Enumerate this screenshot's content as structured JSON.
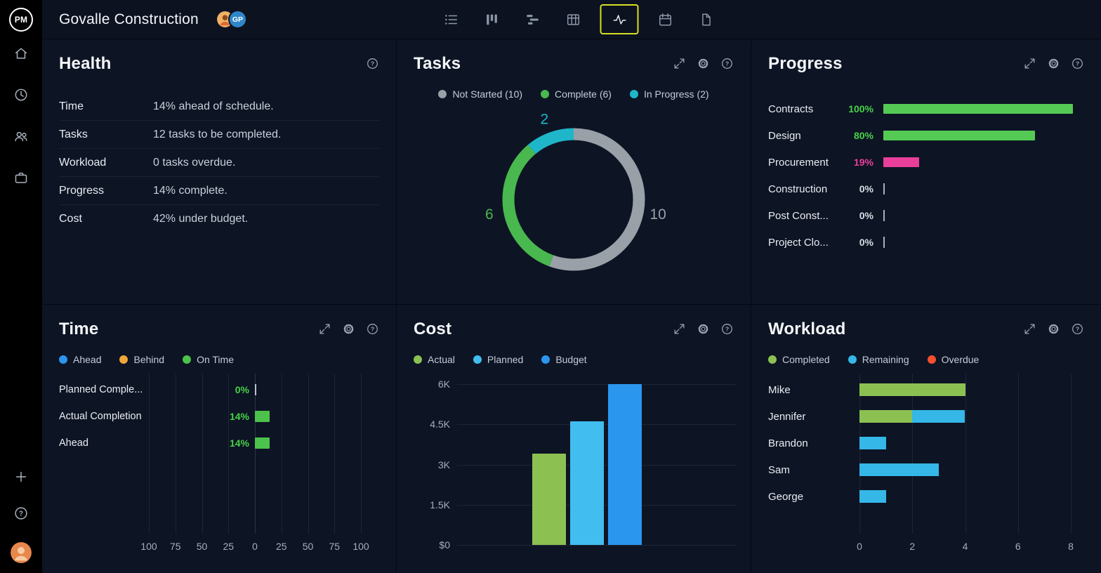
{
  "app": {
    "logo_text": "PM",
    "title": "Govalle Construction"
  },
  "topbar": {
    "avatars": [
      {
        "type": "photo",
        "name": "member-avatar"
      },
      {
        "type": "initials",
        "initials": "GP",
        "color": "#2f86c8"
      }
    ],
    "view_icons": [
      {
        "name": "task-list"
      },
      {
        "name": "kanban-board"
      },
      {
        "name": "gantt"
      },
      {
        "name": "sheet"
      },
      {
        "name": "dashboard",
        "active": true
      },
      {
        "name": "calendar"
      },
      {
        "name": "report"
      }
    ],
    "active_view_border": "#d7e021"
  },
  "sidebar": {
    "icons": [
      "home",
      "timesheet",
      "team",
      "portfolio"
    ],
    "footer_icons": [
      "add",
      "help",
      "profile"
    ]
  },
  "panels": {
    "health": {
      "title": "Health",
      "rows": [
        {
          "label": "Time",
          "value": "14% ahead of schedule."
        },
        {
          "label": "Tasks",
          "value": "12 tasks to be completed."
        },
        {
          "label": "Workload",
          "value": "0 tasks overdue."
        },
        {
          "label": "Progress",
          "value": "14% complete."
        },
        {
          "label": "Cost",
          "value": "42% under budget."
        }
      ]
    },
    "tasks": {
      "title": "Tasks",
      "chart_data": {
        "type": "pie",
        "donut": true,
        "total": 18,
        "legend": [
          {
            "label": "Not Started (10)",
            "color": "#9aa0a8"
          },
          {
            "label": "Complete (6)",
            "color": "#49b84e"
          },
          {
            "label": "In Progress (2)",
            "color": "#1fb6c9"
          }
        ],
        "segments": [
          {
            "name": "Not Started",
            "value": 10,
            "color": "#9aa0a8"
          },
          {
            "name": "Complete",
            "value": 6,
            "color": "#49b84e"
          },
          {
            "name": "In Progress",
            "value": 2,
            "color": "#1fb6c9"
          }
        ]
      }
    },
    "progress": {
      "title": "Progress",
      "chart_data": {
        "type": "bar",
        "orientation": "horizontal",
        "max": 100,
        "rows": [
          {
            "label": "Contracts",
            "value": 100,
            "display": "100%",
            "bar_color": "#54ca54",
            "value_color": "#47d247"
          },
          {
            "label": "Design",
            "value": 80,
            "display": "80%",
            "bar_color": "#54ca54",
            "value_color": "#47d247"
          },
          {
            "label": "Procurement",
            "value": 19,
            "display": "19%",
            "bar_color": "#ea3e9b",
            "value_color": "#ea3e9b"
          },
          {
            "label": "Construction",
            "value": 0,
            "display": "0%",
            "bar_color": "#a7b0bd",
            "value_color": "#d9dde3"
          },
          {
            "label": "Post Const...",
            "value": 0,
            "display": "0%",
            "bar_color": "#a7b0bd",
            "value_color": "#d9dde3"
          },
          {
            "label": "Project Clo...",
            "value": 0,
            "display": "0%",
            "bar_color": "#a7b0bd",
            "value_color": "#d9dde3"
          }
        ]
      }
    },
    "time": {
      "title": "Time",
      "chart_data": {
        "type": "bar",
        "orientation": "diverging-horizontal",
        "legend": [
          {
            "label": "Ahead",
            "color": "#2b96ee"
          },
          {
            "label": "Behind",
            "color": "#f0a63a"
          },
          {
            "label": "On Time",
            "color": "#4cc14c"
          }
        ],
        "axis_ticks": [
          100,
          75,
          50,
          25,
          0,
          25,
          50,
          75,
          100
        ],
        "range": [
          -100,
          100
        ],
        "bar_color": "#4cc14c",
        "value_color": "#47d247",
        "rows": [
          {
            "label": "Planned Comple...",
            "value": 0,
            "display": "0%"
          },
          {
            "label": "Actual Completion",
            "value": 14,
            "display": "14%"
          },
          {
            "label": "Ahead",
            "value": 14,
            "display": "14%"
          }
        ]
      }
    },
    "cost": {
      "title": "Cost",
      "chart_data": {
        "type": "bar",
        "legend": [
          {
            "label": "Actual",
            "color": "#8cc152"
          },
          {
            "label": "Planned",
            "color": "#41bdf0"
          },
          {
            "label": "Budget",
            "color": "#2b96ee"
          }
        ],
        "y_ticks": [
          "6K",
          "4.5K",
          "3K",
          "1.5K",
          "$0"
        ],
        "ymax": 6000,
        "bars": [
          {
            "name": "Actual",
            "value": 3400,
            "color": "#8cc152"
          },
          {
            "name": "Planned",
            "value": 4600,
            "color": "#41bdf0"
          },
          {
            "name": "Budget",
            "value": 6000,
            "color": "#2b96ee"
          }
        ]
      }
    },
    "workload": {
      "title": "Workload",
      "chart_data": {
        "type": "bar",
        "orientation": "horizontal",
        "stacked": true,
        "legend": [
          {
            "label": "Completed",
            "color": "#8cc152"
          },
          {
            "label": "Remaining",
            "color": "#35b7e8"
          },
          {
            "label": "Overdue",
            "color": "#f4502e"
          }
        ],
        "x_ticks": [
          0,
          2,
          4,
          6,
          8
        ],
        "xmax": 8,
        "colors": {
          "completed": "#8cc152",
          "remaining": "#35b7e8",
          "overdue": "#f4502e"
        },
        "rows": [
          {
            "label": "Mike",
            "completed": 4,
            "remaining": 0,
            "overdue": 0
          },
          {
            "label": "Jennifer",
            "completed": 2,
            "remaining": 2,
            "overdue": 0
          },
          {
            "label": "Brandon",
            "completed": 0,
            "remaining": 1,
            "overdue": 0
          },
          {
            "label": "Sam",
            "completed": 0,
            "remaining": 3,
            "overdue": 0
          },
          {
            "label": "George",
            "completed": 0,
            "remaining": 1,
            "overdue": 0
          }
        ]
      }
    }
  }
}
